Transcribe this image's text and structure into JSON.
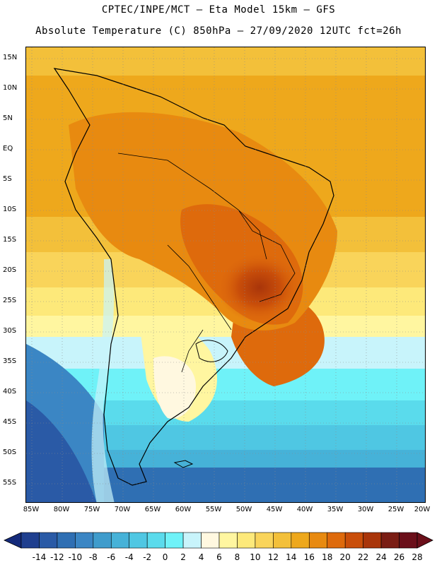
{
  "header": {
    "title_line1": "CPTEC/INPE/MCT –  Eta Model 15km – GFS",
    "title_line2": "Absolute Temperature (C) 850hPa – 27/09/2020 12UTC fct=26h"
  },
  "map": {
    "lat_labels": [
      "15N",
      "10N",
      "5N",
      "EQ",
      "5S",
      "10S",
      "15S",
      "20S",
      "25S",
      "30S",
      "35S",
      "40S",
      "45S",
      "50S",
      "55S"
    ],
    "lon_labels": [
      "85W",
      "80W",
      "75W",
      "70W",
      "65W",
      "60W",
      "55W",
      "50W",
      "45W",
      "40W",
      "35W",
      "30W",
      "25W",
      "20W"
    ]
  },
  "colorbar": {
    "labels": [
      "-14",
      "-12",
      "-10",
      "-8",
      "-6",
      "-4",
      "-2",
      "0",
      "2",
      "4",
      "6",
      "8",
      "10",
      "12",
      "14",
      "16",
      "18",
      "20",
      "22",
      "24",
      "26",
      "28"
    ],
    "colors": [
      "#1f3f8f",
      "#2a5aa6",
      "#2f6fb3",
      "#3b86c4",
      "#3f9ccc",
      "#46b2d8",
      "#4fc7e3",
      "#5adbec",
      "#6ff2f8",
      "#c8f4fb",
      "#fff8e0",
      "#fff6a0",
      "#fde97a",
      "#f9d45a",
      "#f3c03a",
      "#eea81c",
      "#e88a10",
      "#de6a0c",
      "#c94e0a",
      "#a9350a",
      "#7a1d14",
      "#6b0f1a"
    ],
    "under_color": "#142a7a",
    "over_color": "#6b0f1a"
  }
}
